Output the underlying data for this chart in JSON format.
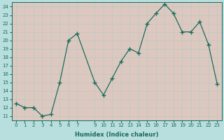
{
  "x": [
    0,
    1,
    2,
    3,
    4,
    5,
    6,
    7,
    9,
    10,
    11,
    12,
    13,
    14,
    15,
    16,
    17,
    18,
    19,
    20,
    21,
    22,
    23
  ],
  "y": [
    12.5,
    12.0,
    12.0,
    11.0,
    11.2,
    15.0,
    20.0,
    20.8,
    15.0,
    13.5,
    15.5,
    17.5,
    19.0,
    18.5,
    22.0,
    23.2,
    24.3,
    23.2,
    21.0,
    21.0,
    22.2,
    19.5,
    14.8
  ],
  "xlabel": "Humidex (Indice chaleur)",
  "xlim": [
    -0.5,
    23.5
  ],
  "ylim": [
    10.5,
    24.5
  ],
  "yticks": [
    11,
    12,
    13,
    14,
    15,
    16,
    17,
    18,
    19,
    20,
    21,
    22,
    23,
    24
  ],
  "xticks": [
    0,
    1,
    2,
    3,
    4,
    5,
    6,
    7,
    9,
    10,
    11,
    12,
    13,
    14,
    15,
    16,
    17,
    18,
    19,
    20,
    21,
    22,
    23
  ],
  "line_color": "#1a6b5a",
  "marker_color": "#1a6b5a",
  "outer_bg": "#b8dede",
  "plot_bg": "#ddc8c0",
  "grid_color": "#b8c8c4"
}
